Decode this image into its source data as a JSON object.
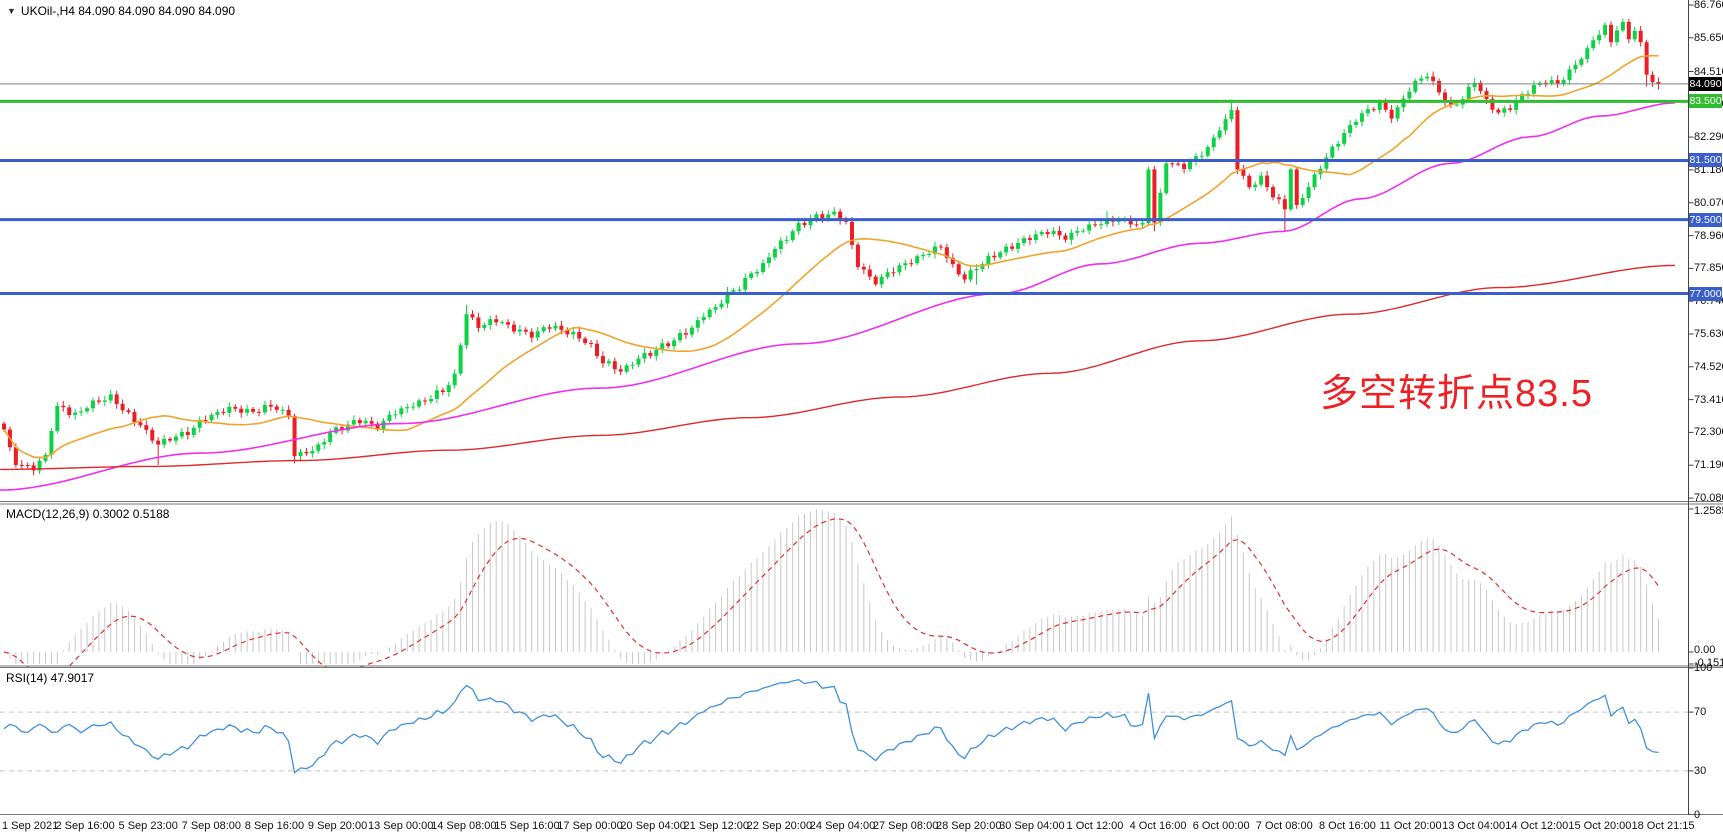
{
  "title": {
    "symbol_text": "UKOil-,H4  84.090 84.090 84.090 84.090"
  },
  "annotation": {
    "text": "多空转折点83.5"
  },
  "indicators": {
    "macd": {
      "label_text": "MACD(12,26,9) 0.3002 0.5188",
      "axis_labels": [
        "1.2585",
        "0.00",
        "-0.1516"
      ],
      "params": [
        12,
        26,
        9
      ]
    },
    "rsi": {
      "label_text": "RSI(14) 47.9017",
      "axis_labels": [
        100,
        70,
        30,
        0
      ],
      "levels": [
        70,
        30
      ],
      "period": 14,
      "current_value": 47.9017
    }
  },
  "price_axis": {
    "tick_values": [
      86.76,
      85.65,
      84.51,
      83.4,
      82.29,
      81.18,
      80.07,
      78.96,
      77.85,
      76.74,
      75.63,
      74.52,
      73.41,
      72.3,
      71.19,
      70.08
    ],
    "badges": [
      {
        "text": "84.090",
        "price": 84.09,
        "bg": "#000000"
      },
      {
        "text": "83.500",
        "price": 83.5,
        "bg": "#2fbe2f"
      },
      {
        "text": "81.500",
        "price": 81.5,
        "bg": "#3a5fcd"
      },
      {
        "text": "79.500",
        "price": 79.5,
        "bg": "#3a5fcd"
      },
      {
        "text": "77.000",
        "price": 77.0,
        "bg": "#3a5fcd"
      }
    ]
  },
  "time_axis": {
    "labels": [
      "1 Sep 2021",
      "2 Sep 16:00",
      "5 Sep 23:00",
      "7 Sep 08:00",
      "8 Sep 16:00",
      "9 Sep 20:00",
      "13 Sep 00:00",
      "14 Sep 08:00",
      "15 Sep 16:00",
      "17 Sep 00:00",
      "20 Sep 04:00",
      "21 Sep 12:00",
      "22 Sep 20:00",
      "24 Sep 04:00",
      "27 Sep 08:00",
      "28 Sep 20:00",
      "30 Sep 04:00",
      "1 Oct 12:00",
      "4 Oct 16:00",
      "6 Oct 00:00",
      "7 Oct 08:00",
      "8 Oct 16:00",
      "11 Oct 20:00",
      "13 Oct 04:00",
      "14 Oct 12:00",
      "15 Oct 20:00",
      "18 Oct 21:15"
    ]
  },
  "chart_data": {
    "type": "candlestick",
    "symbol": "UKOil-",
    "timeframe": "H4",
    "current_price": 84.09,
    "price_range_shown": [
      70.08,
      86.76
    ],
    "candle_count": 280,
    "price_path": [
      [
        0,
        72.4
      ],
      [
        2,
        71.2
      ],
      [
        5,
        71.1
      ],
      [
        7,
        71.5
      ],
      [
        9,
        73.2
      ],
      [
        12,
        72.9
      ],
      [
        15,
        73.3
      ],
      [
        18,
        73.5
      ],
      [
        20,
        73.1
      ],
      [
        22,
        72.7
      ],
      [
        26,
        71.9
      ],
      [
        28,
        72.1
      ],
      [
        31,
        72.3
      ],
      [
        34,
        72.8
      ],
      [
        38,
        73.1
      ],
      [
        42,
        73.0
      ],
      [
        45,
        73.2
      ],
      [
        48,
        72.9
      ],
      [
        49,
        71.5
      ],
      [
        52,
        71.7
      ],
      [
        56,
        72.4
      ],
      [
        60,
        72.7
      ],
      [
        63,
        72.5
      ],
      [
        66,
        73.0
      ],
      [
        70,
        73.3
      ],
      [
        74,
        73.7
      ],
      [
        76,
        74.2
      ],
      [
        78,
        76.3
      ],
      [
        80,
        75.9
      ],
      [
        83,
        76.1
      ],
      [
        86,
        75.8
      ],
      [
        89,
        75.6
      ],
      [
        92,
        75.9
      ],
      [
        95,
        75.7
      ],
      [
        98,
        75.4
      ],
      [
        101,
        74.7
      ],
      [
        104,
        74.4
      ],
      [
        108,
        74.9
      ],
      [
        112,
        75.3
      ],
      [
        115,
        75.7
      ],
      [
        119,
        76.4
      ],
      [
        123,
        77.1
      ],
      [
        127,
        77.8
      ],
      [
        131,
        78.7
      ],
      [
        134,
        79.3
      ],
      [
        137,
        79.6
      ],
      [
        140,
        79.7
      ],
      [
        142,
        79.4
      ],
      [
        144,
        77.9
      ],
      [
        147,
        77.4
      ],
      [
        150,
        77.8
      ],
      [
        153,
        78.1
      ],
      [
        156,
        78.4
      ],
      [
        158,
        78.6
      ],
      [
        160,
        77.9
      ],
      [
        162,
        77.5
      ],
      [
        164,
        77.9
      ],
      [
        167,
        78.3
      ],
      [
        170,
        78.6
      ],
      [
        173,
        78.9
      ],
      [
        176,
        79.1
      ],
      [
        179,
        78.9
      ],
      [
        182,
        79.2
      ],
      [
        185,
        79.4
      ],
      [
        188,
        79.5
      ],
      [
        190,
        79.4
      ],
      [
        192,
        79.3
      ],
      [
        193,
        81.2
      ],
      [
        194,
        79.4
      ],
      [
        196,
        81.4
      ],
      [
        199,
        81.3
      ],
      [
        201,
        81.6
      ],
      [
        203,
        81.9
      ],
      [
        205,
        82.6
      ],
      [
        207,
        83.2
      ],
      [
        208,
        81.2
      ],
      [
        210,
        80.6
      ],
      [
        212,
        80.9
      ],
      [
        214,
        80.3
      ],
      [
        216,
        79.9
      ],
      [
        217,
        81.2
      ],
      [
        218,
        80.0
      ],
      [
        220,
        80.6
      ],
      [
        222,
        81.3
      ],
      [
        224,
        81.9
      ],
      [
        226,
        82.4
      ],
      [
        228,
        82.9
      ],
      [
        230,
        83.2
      ],
      [
        232,
        83.4
      ],
      [
        234,
        83.0
      ],
      [
        236,
        83.6
      ],
      [
        238,
        84.2
      ],
      [
        240,
        84.4
      ],
      [
        242,
        83.8
      ],
      [
        244,
        83.3
      ],
      [
        246,
        83.6
      ],
      [
        248,
        84.2
      ],
      [
        250,
        83.5
      ],
      [
        252,
        83.1
      ],
      [
        254,
        83.3
      ],
      [
        256,
        83.7
      ],
      [
        258,
        84.0
      ],
      [
        260,
        84.2
      ],
      [
        262,
        84.1
      ],
      [
        264,
        84.5
      ],
      [
        266,
        85.0
      ],
      [
        268,
        85.6
      ],
      [
        270,
        86.0
      ],
      [
        271,
        85.5
      ],
      [
        272,
        85.9
      ],
      [
        273,
        86.1
      ],
      [
        274,
        85.6
      ],
      [
        275,
        85.9
      ],
      [
        276,
        85.5
      ],
      [
        277,
        84.4
      ],
      [
        278,
        84.15
      ],
      [
        279,
        84.09
      ]
    ],
    "wick_overrides": {
      "18": {
        "high": 73.75
      },
      "26": {
        "low": 71.2
      },
      "49": {
        "low": 71.25
      },
      "78": {
        "high": 76.62
      },
      "140": {
        "high": 79.92
      },
      "164": {
        "low": 77.3
      },
      "186": {
        "high": 79.78
      },
      "194": {
        "low": 79.1
      },
      "207": {
        "high": 83.56
      },
      "216": {
        "low": 79.12
      },
      "273": {
        "high": 86.3
      },
      "277": {
        "low": 84.0
      },
      "279": {
        "low": 83.9
      }
    },
    "h_lines": [
      {
        "price": 84.09,
        "color": "#808080",
        "width": 1,
        "label": "84.090",
        "role": "current-price"
      },
      {
        "price": 83.5,
        "color": "#2fbe2f",
        "width": 3,
        "label": "83.500",
        "role": "pivot"
      },
      {
        "price": 81.5,
        "color": "#3a5fcd",
        "width": 3,
        "label": "81.500",
        "role": "support"
      },
      {
        "price": 79.5,
        "color": "#3a5fcd",
        "width": 3,
        "label": "79.500",
        "role": "support"
      },
      {
        "price": 77.0,
        "color": "#3a5fcd",
        "width": 3,
        "label": "77.000",
        "role": "support"
      }
    ],
    "moving_averages": {
      "fast": {
        "type": "sma",
        "period": 20,
        "color": "#f2a32c"
      },
      "mid": {
        "color": "#f02ef0",
        "path": [
          [
            0,
            70.35
          ],
          [
            200,
            71.6
          ],
          [
            400,
            72.6
          ],
          [
            600,
            73.8
          ],
          [
            800,
            75.3
          ],
          [
            1000,
            77.0
          ],
          [
            1100,
            78.0
          ],
          [
            1200,
            78.7
          ],
          [
            1283,
            79.1
          ],
          [
            1360,
            80.2
          ],
          [
            1450,
            81.4
          ],
          [
            1530,
            82.3
          ],
          [
            1600,
            83.0
          ],
          [
            1675,
            83.45
          ]
        ]
      },
      "slow": {
        "color": "#e22828",
        "path": [
          [
            0,
            71.05
          ],
          [
            150,
            71.15
          ],
          [
            300,
            71.35
          ],
          [
            450,
            71.7
          ],
          [
            600,
            72.2
          ],
          [
            750,
            72.8
          ],
          [
            900,
            73.5
          ],
          [
            1050,
            74.3
          ],
          [
            1200,
            75.4
          ],
          [
            1350,
            76.3
          ],
          [
            1500,
            77.2
          ],
          [
            1675,
            77.95
          ]
        ]
      }
    }
  },
  "colors": {
    "bull": "#0ed145",
    "bear": "#ec1d24",
    "macd_bar": "#c8c8c8",
    "macd_signal": "#e03030",
    "rsi_line": "#4090dd",
    "level_dash": "#c4c4c4",
    "border": "#777777",
    "annotation": "#ed2024"
  }
}
